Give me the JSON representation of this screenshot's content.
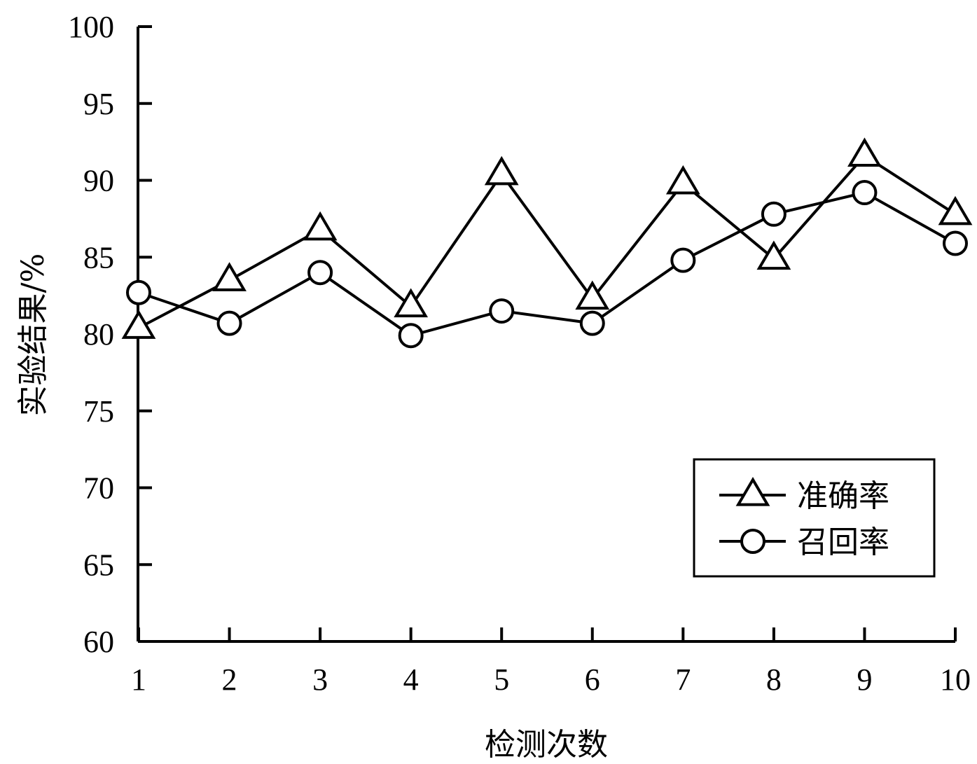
{
  "chart_data": {
    "type": "line",
    "title": "",
    "xlabel": "检测次数",
    "ylabel": "实验结果/%",
    "categories": [
      "1",
      "2",
      "3",
      "4",
      "5",
      "6",
      "7",
      "8",
      "9",
      "10"
    ],
    "x": [
      1,
      2,
      3,
      4,
      5,
      6,
      7,
      8,
      9,
      10
    ],
    "xlim": [
      1,
      10
    ],
    "ylim": [
      60,
      100
    ],
    "yticks": [
      60,
      65,
      70,
      75,
      80,
      85,
      90,
      95,
      100
    ],
    "grid": false,
    "legend_position": "bottom-right",
    "series": [
      {
        "name": "准确率",
        "marker": "triangle-open",
        "color": "#000000",
        "values": [
          80.4,
          83.5,
          86.8,
          81.8,
          90.4,
          82.3,
          89.8,
          84.9,
          91.6,
          87.8
        ]
      },
      {
        "name": "召回率",
        "marker": "circle-open",
        "color": "#000000",
        "values": [
          82.7,
          80.7,
          84.0,
          79.9,
          81.5,
          80.7,
          84.8,
          87.8,
          89.2,
          85.9
        ]
      }
    ]
  }
}
